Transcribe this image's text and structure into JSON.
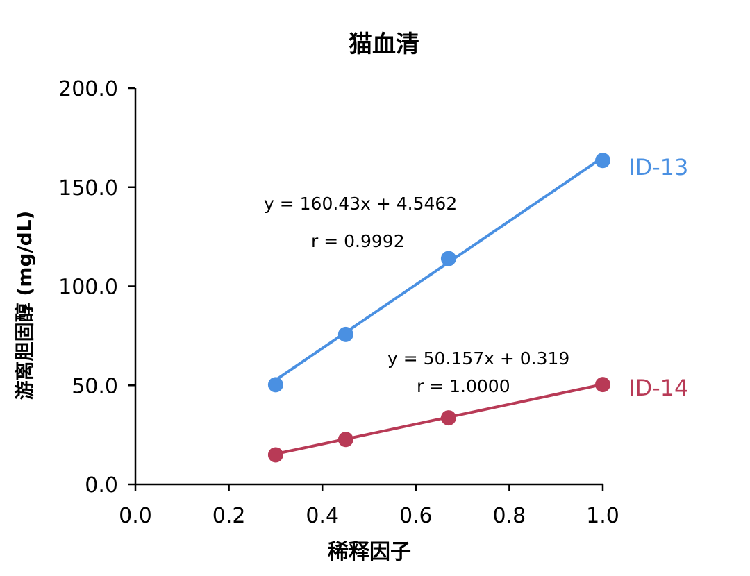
{
  "chart_data": {
    "type": "scatter",
    "title": "猫血清",
    "xlabel": "稀释因子",
    "ylabel": "游离胆固醇 (mg/dL)",
    "xlim": [
      0.0,
      1.0
    ],
    "ylim": [
      0.0,
      200.0
    ],
    "x_ticks": [
      "0.0",
      "0.2",
      "0.4",
      "0.6",
      "0.8",
      "1.0"
    ],
    "y_ticks": [
      "0.0",
      "50.0",
      "100.0",
      "150.0",
      "200.0"
    ],
    "grid": false,
    "series": [
      {
        "name": "ID-13",
        "color": "#4A90E2",
        "x": [
          0.3,
          0.45,
          0.67,
          1.0
        ],
        "y": [
          50.3,
          75.7,
          114.0,
          163.5
        ],
        "fit": {
          "slope": 160.43,
          "intercept": 4.5462
        },
        "equation": "y = 160.43x + 4.5462",
        "r_text": "r = 0.9992"
      },
      {
        "name": "ID-14",
        "color": "#B83A56",
        "x": [
          0.3,
          0.45,
          0.67,
          1.0
        ],
        "y": [
          14.9,
          22.7,
          33.6,
          50.4
        ],
        "fit": {
          "slope": 50.157,
          "intercept": 0.319
        },
        "equation": "y = 50.157x + 0.319",
        "r_text": "r = 1.0000"
      }
    ]
  }
}
